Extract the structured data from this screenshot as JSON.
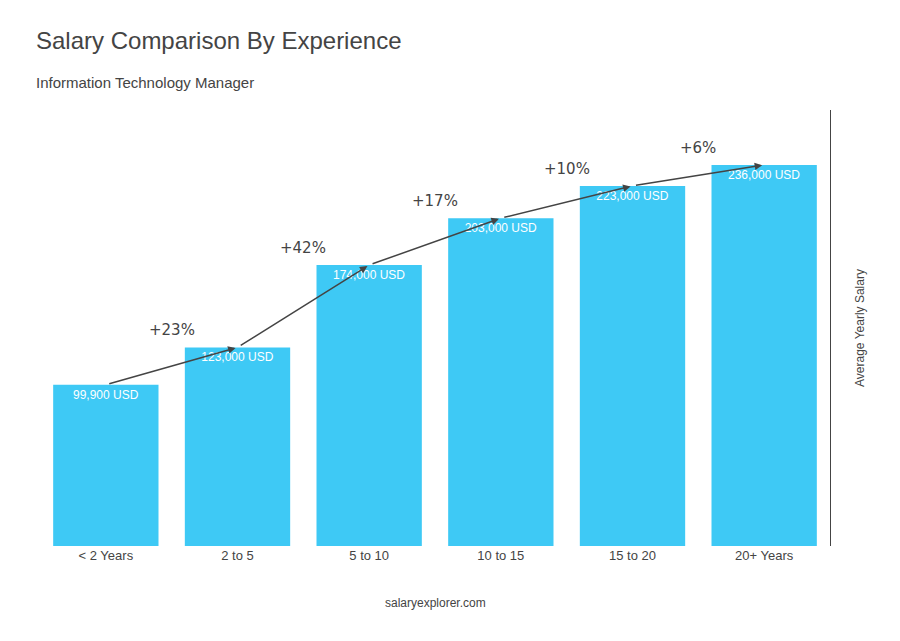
{
  "chart_data": {
    "type": "bar",
    "title": "Salary Comparison By Experience",
    "subtitle": "Information Technology Manager",
    "categories": [
      "< 2 Years",
      "2 to 5",
      "5 to 10",
      "10 to 15",
      "15 to 20",
      "20+ Years"
    ],
    "values": [
      99900,
      123000,
      174000,
      203000,
      223000,
      236000
    ],
    "value_labels": [
      "99,900 USD",
      "123,000 USD",
      "174,000 USD",
      "203,000 USD",
      "223,000 USD",
      "236,000 USD"
    ],
    "data_labels": true,
    "annotations": [
      "+23%",
      "+42%",
      "+17%",
      "+10%",
      "+6%"
    ],
    "ylabel": "Average Yearly Salary",
    "footer": "salaryexplorer.com",
    "color": "#3EC9F5",
    "ylim": [
      0,
      270000
    ],
    "tick_labels": "x",
    "grid": false
  }
}
